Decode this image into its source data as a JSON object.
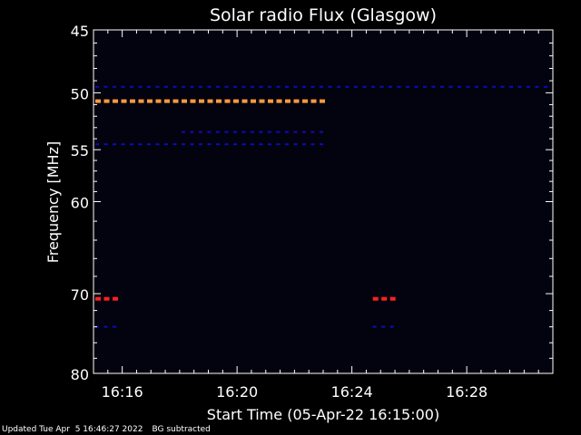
{
  "chart_data": {
    "type": "heatmap",
    "title": "Solar radio Flux (Glasgow)",
    "xlabel": "Start Time (05-Apr-22 16:15:00)",
    "ylabel": "Frequency [MHz]",
    "y_scale": "log",
    "ylim": [
      45,
      80
    ],
    "xlim": [
      "16:15:00",
      "16:31:00"
    ],
    "y_ticks": [
      45,
      50,
      55,
      60,
      70,
      80
    ],
    "x_ticks": [
      "16:16",
      "16:20",
      "16:24",
      "16:28"
    ],
    "colors": {
      "background": "#03030f",
      "weak": "#0c0cc0",
      "strong_orange": "#ff9a3c",
      "strong_red": "#ff2020"
    },
    "emission_bands": [
      {
        "freq_mhz": 49.5,
        "start": "16:15:00",
        "end": "16:31:00",
        "intensity": "weak"
      },
      {
        "freq_mhz": 50.7,
        "start": "16:15:00",
        "end": "16:23:10",
        "intensity": "strong_orange"
      },
      {
        "freq_mhz": 53.4,
        "start": "16:18:00",
        "end": "16:23:10",
        "intensity": "weak"
      },
      {
        "freq_mhz": 54.5,
        "start": "16:15:00",
        "end": "16:23:10",
        "intensity": "weak"
      },
      {
        "freq_mhz": 70.6,
        "start": "16:15:00",
        "end": "16:15:55",
        "intensity": "strong_red"
      },
      {
        "freq_mhz": 70.6,
        "start": "16:24:40",
        "end": "16:25:35",
        "intensity": "strong_red"
      },
      {
        "freq_mhz": 74.0,
        "start": "16:15:00",
        "end": "16:15:55",
        "intensity": "weak"
      },
      {
        "freq_mhz": 74.0,
        "start": "16:24:40",
        "end": "16:25:35",
        "intensity": "weak"
      }
    ]
  },
  "footer": {
    "updated": "Updated Tue Apr  5 16:46:27 2022",
    "note": "BG subtracted"
  }
}
